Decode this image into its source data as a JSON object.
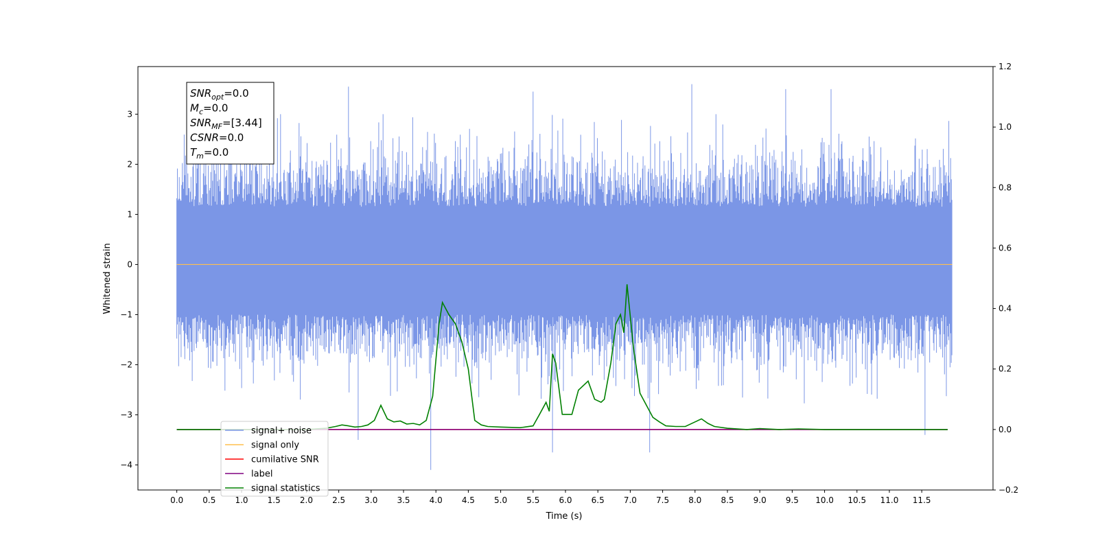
{
  "chart_data": {
    "type": "line",
    "xlabel": "Time (s)",
    "ylabel": "Whitened strain",
    "xlim": [
      -0.6,
      12.6
    ],
    "ylim": [
      -4.5,
      3.95
    ],
    "y2lim": [
      -0.2,
      1.2
    ],
    "xticks": [
      0.0,
      0.5,
      1.0,
      1.5,
      2.0,
      2.5,
      3.0,
      3.5,
      4.0,
      4.5,
      5.0,
      5.5,
      6.0,
      6.5,
      7.0,
      7.5,
      8.0,
      8.5,
      9.0,
      9.5,
      10.0,
      10.5,
      11.0,
      11.5
    ],
    "xtick_labels": [
      "0.0",
      "0.5",
      "1.0",
      "1.5",
      "2.0",
      "2.5",
      "3.0",
      "3.5",
      "4.0",
      "4.5",
      "5.0",
      "5.5",
      "6.0",
      "6.5",
      "7.0",
      "7.5",
      "8.0",
      "8.5",
      "9.0",
      "9.5",
      "10.0",
      "10.5",
      "11.0",
      "11.5"
    ],
    "yticks": [
      -4,
      -3,
      -2,
      -1,
      0,
      1,
      2,
      3
    ],
    "ytick_labels": [
      "−4",
      "−3",
      "−2",
      "−1",
      "0",
      "1",
      "2",
      "3"
    ],
    "y2ticks": [
      -0.2,
      0.0,
      0.2,
      0.4,
      0.6,
      0.8,
      1.0,
      1.2
    ],
    "y2tick_labels": [
      "−0.2",
      "0.0",
      "0.2",
      "0.4",
      "0.6",
      "0.8",
      "1.0",
      "1.2"
    ],
    "grid": false,
    "legend_position": "lower-left",
    "annotation_box": [
      {
        "sym": "SNR",
        "sub": "opt",
        "val": "=0.0"
      },
      {
        "sym": "M",
        "sub": "c",
        "val": "=0.0"
      },
      {
        "sym": "SNR",
        "sub": "MF",
        "val": "=[3.44]"
      },
      {
        "sym": "CSNR",
        "sub": "",
        "val": "=0.0"
      },
      {
        "sym": "T",
        "sub": "m",
        "val": "=0.0"
      }
    ],
    "series": [
      {
        "name": "signal+ noise",
        "axis": "left",
        "color": "#7b96e6",
        "description": "dense whitened noise, roughly -2..+2.5 with spikes to about 3.6 / -4.1",
        "t_range": [
          0.0,
          11.97
        ],
        "sample_rate": 2048,
        "notable_peaks": [
          {
            "x": 2.65,
            "y": 3.55
          },
          {
            "x": 5.5,
            "y": 3.45
          },
          {
            "x": 7.95,
            "y": 3.6
          },
          {
            "x": 9.4,
            "y": 3.5
          },
          {
            "x": 10.1,
            "y": 3.5
          },
          {
            "x": 3.92,
            "y": -4.1
          },
          {
            "x": 5.8,
            "y": -3.75
          },
          {
            "x": 7.3,
            "y": -3.75
          },
          {
            "x": 2.8,
            "y": -3.5
          },
          {
            "x": 11.55,
            "y": -3.4
          }
        ]
      },
      {
        "name": "signal only",
        "axis": "left",
        "color": "#ffbf4d",
        "x": [
          0.0,
          11.97
        ],
        "y": [
          0.0,
          0.0
        ]
      },
      {
        "name": "cumilative SNR",
        "axis": "right",
        "color": "#ff0000",
        "x": [
          0.0,
          11.9
        ],
        "y": [
          0.0,
          0.0
        ]
      },
      {
        "name": "label",
        "axis": "right",
        "color": "#800080",
        "x": [
          0.0,
          11.9
        ],
        "y": [
          0.0,
          0.0
        ]
      },
      {
        "name": "signal statistics",
        "axis": "right",
        "color": "#008000",
        "x": [
          0.0,
          0.5,
          1.0,
          1.5,
          2.0,
          2.3,
          2.45,
          2.55,
          2.65,
          2.75,
          2.85,
          2.95,
          3.05,
          3.15,
          3.25,
          3.35,
          3.45,
          3.55,
          3.65,
          3.75,
          3.85,
          3.95,
          4.05,
          4.1,
          4.2,
          4.3,
          4.4,
          4.5,
          4.6,
          4.7,
          4.8,
          5.0,
          5.3,
          5.5,
          5.6,
          5.7,
          5.75,
          5.8,
          5.85,
          5.95,
          6.1,
          6.2,
          6.35,
          6.45,
          6.55,
          6.6,
          6.7,
          6.78,
          6.85,
          6.9,
          6.95,
          7.05,
          7.15,
          7.25,
          7.35,
          7.45,
          7.55,
          7.7,
          7.85,
          8.0,
          8.1,
          8.2,
          8.3,
          8.5,
          8.8,
          9.0,
          9.3,
          9.6,
          10.0,
          11.0,
          11.9
        ],
        "y": [
          0.0,
          0.0,
          0.0,
          0.0,
          0.0,
          0.004,
          0.01,
          0.015,
          0.012,
          0.008,
          0.01,
          0.015,
          0.03,
          0.08,
          0.035,
          0.025,
          0.028,
          0.018,
          0.02,
          0.015,
          0.03,
          0.11,
          0.35,
          0.42,
          0.38,
          0.35,
          0.29,
          0.2,
          0.03,
          0.015,
          0.01,
          0.008,
          0.006,
          0.012,
          0.05,
          0.09,
          0.06,
          0.25,
          0.22,
          0.05,
          0.05,
          0.13,
          0.16,
          0.1,
          0.09,
          0.1,
          0.22,
          0.35,
          0.38,
          0.32,
          0.48,
          0.27,
          0.12,
          0.08,
          0.04,
          0.025,
          0.012,
          0.01,
          0.01,
          0.025,
          0.035,
          0.02,
          0.01,
          0.004,
          0.0,
          0.003,
          0.0,
          0.002,
          0.0,
          0.0,
          0.0
        ]
      }
    ]
  }
}
